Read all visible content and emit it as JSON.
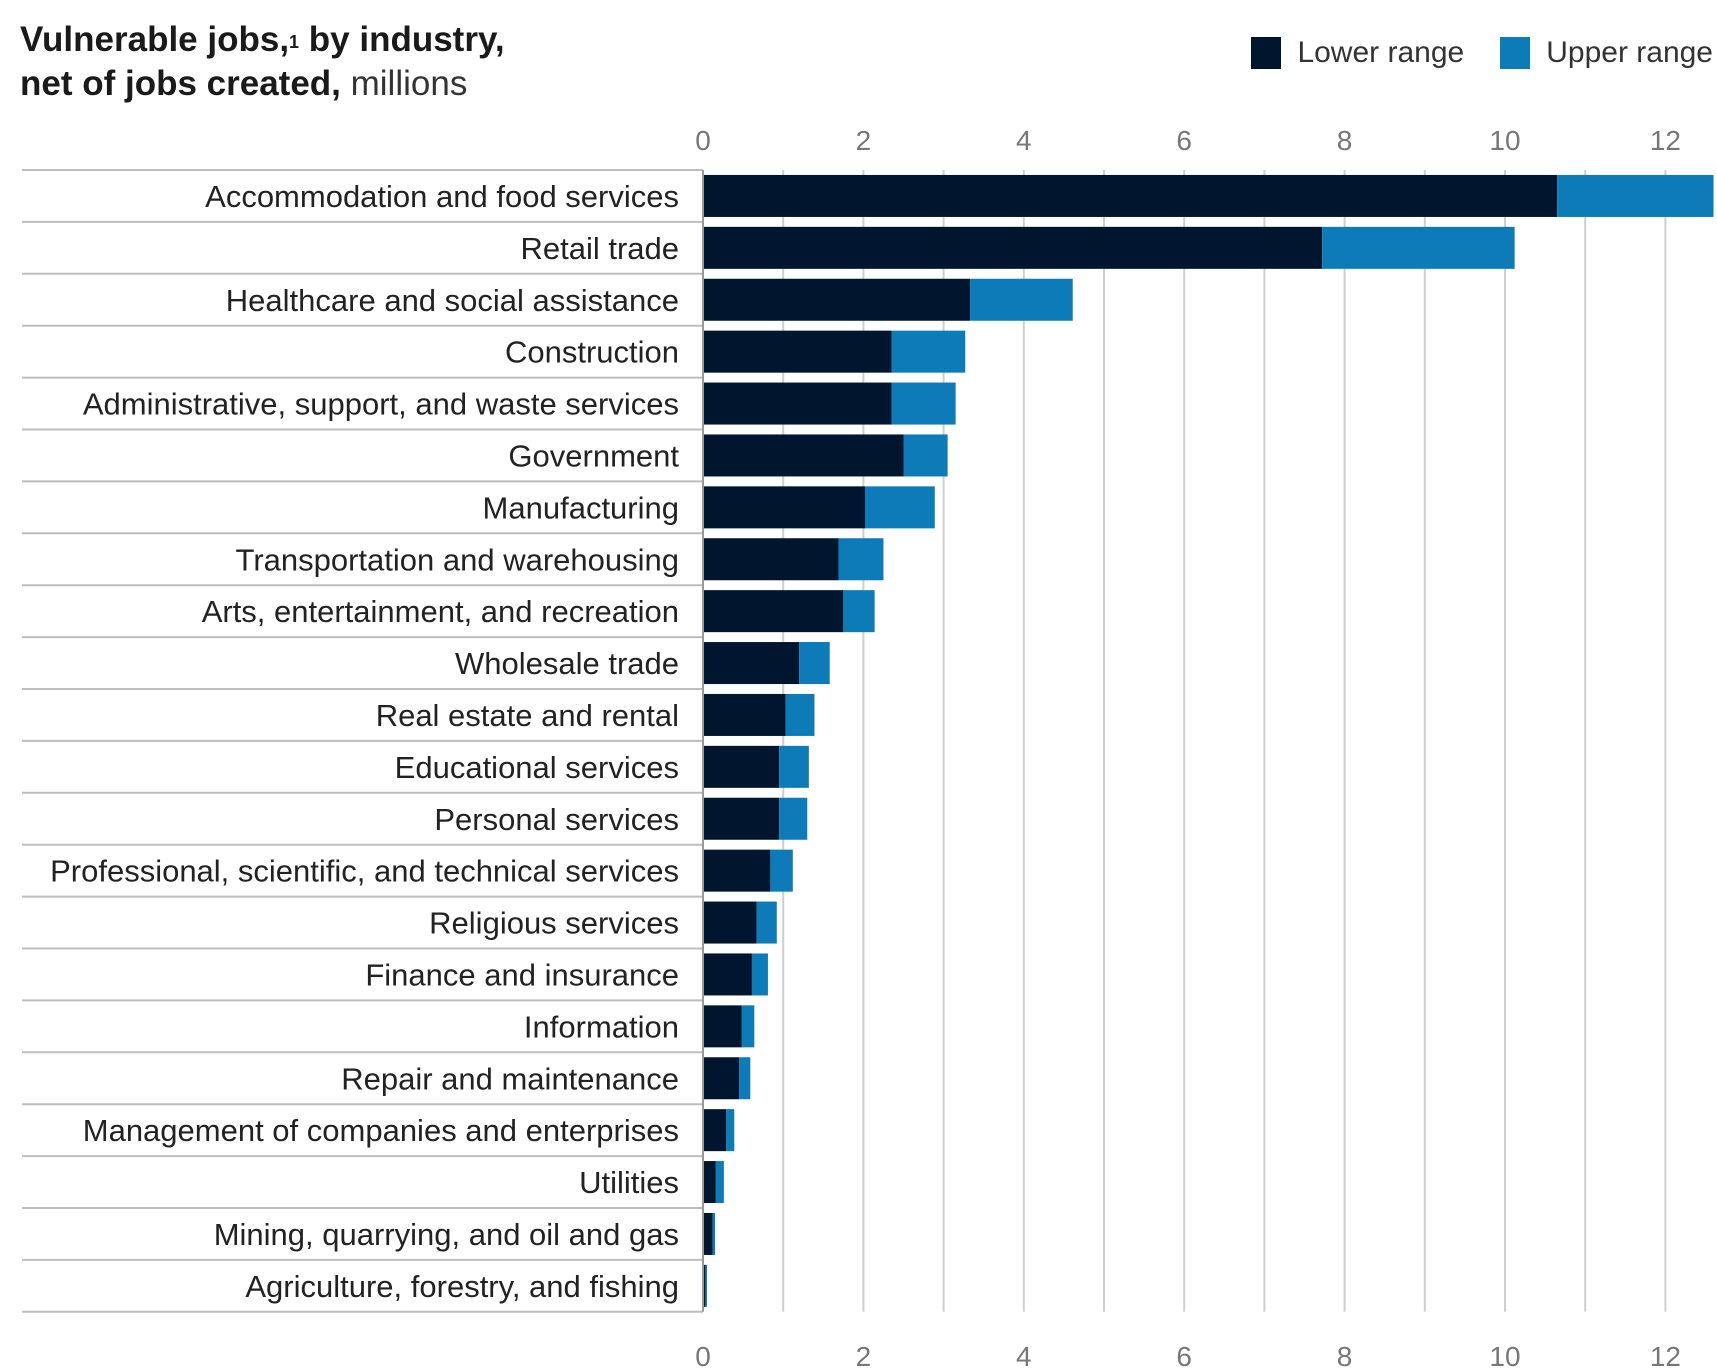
{
  "header": {
    "title_bold_1": "Vulnerable jobs,",
    "footnote_mark": "1",
    "title_bold_2": " by industry,",
    "title_bold_3": "net of jobs created,",
    "title_unit": " millions"
  },
  "legend": {
    "lower_label": "Lower range",
    "upper_label": "Upper range"
  },
  "colors": {
    "lower": "#00152e",
    "upper": "#0d7bb7",
    "grid": "#cfcfcf",
    "separator": "#bdbdbd",
    "tick_text": "#777777",
    "label_text": "#222222"
  },
  "chart_data": {
    "type": "bar",
    "orientation": "horizontal",
    "stacked": true,
    "xlim": [
      0,
      12.6
    ],
    "xticks": [
      "0",
      "2",
      "4",
      "6",
      "8",
      "10",
      "12"
    ],
    "grid": true,
    "legend_position": "top-right",
    "categories": [
      "Accommodation and food services",
      "Retail trade",
      "Healthcare and social assistance",
      "Construction",
      "Administrative, support, and waste services",
      "Government",
      "Manufacturing",
      "Transportation and warehousing",
      "Arts, entertainment, and recreation",
      "Wholesale trade",
      "Real estate and rental",
      "Educational services",
      "Personal services",
      "Professional, scientific, and technical services",
      "Religious services",
      "Finance and insurance",
      "Information",
      "Repair and maintenance",
      "Management of companies and enterprises",
      "Utilities",
      "Mining, quarrying, and oil and gas",
      "Agriculture, forestry, and fishing"
    ],
    "series": [
      {
        "name": "Lower range",
        "values": [
          10.65,
          7.72,
          3.33,
          2.35,
          2.35,
          2.5,
          2.02,
          1.69,
          1.75,
          1.2,
          1.03,
          0.95,
          0.95,
          0.84,
          0.67,
          0.61,
          0.48,
          0.45,
          0.29,
          0.16,
          0.12,
          0.03
        ]
      },
      {
        "name": "Upper range",
        "values": [
          1.95,
          2.4,
          1.28,
          0.92,
          0.8,
          0.55,
          0.87,
          0.56,
          0.39,
          0.38,
          0.36,
          0.37,
          0.35,
          0.28,
          0.25,
          0.2,
          0.16,
          0.14,
          0.1,
          0.1,
          0.03,
          0.02
        ]
      }
    ]
  }
}
